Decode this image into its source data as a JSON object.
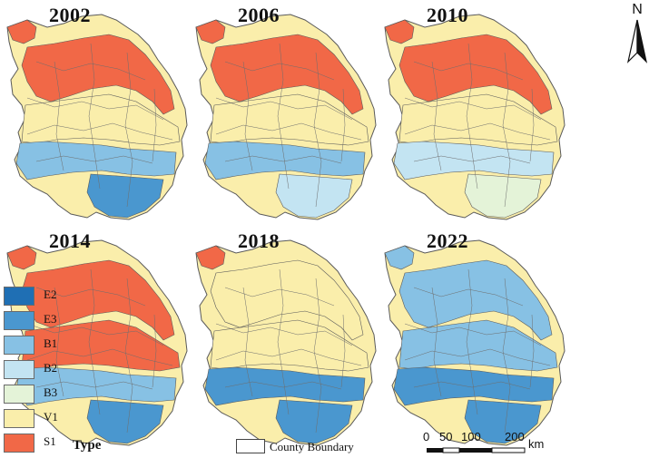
{
  "panels": [
    {
      "year": "2002",
      "north_belt": "S1",
      "central": "V1",
      "south": "B1",
      "southeast": "E3",
      "west_patch": "S1"
    },
    {
      "year": "2006",
      "north_belt": "S1",
      "central": "V1",
      "south": "B1",
      "southeast": "B2",
      "west_patch": "S1"
    },
    {
      "year": "2010",
      "north_belt": "S1",
      "central": "V1",
      "south": "B2",
      "southeast": "B3",
      "west_patch": "S1"
    },
    {
      "year": "2014",
      "north_belt": "S1",
      "central": "S1",
      "south": "B1",
      "southeast": "E3",
      "west_patch": "S1"
    },
    {
      "year": "2018",
      "north_belt": "V1",
      "central": "V1",
      "south": "E3",
      "southeast": "E3",
      "west_patch": "S1"
    },
    {
      "year": "2022",
      "north_belt": "B1",
      "central": "B1",
      "south": "E3",
      "southeast": "E3",
      "west_patch": "B1"
    }
  ],
  "legend": {
    "title": "Type",
    "items": [
      {
        "code": "E2",
        "color": "#1f6fb4"
      },
      {
        "code": "E3",
        "color": "#4a97cf"
      },
      {
        "code": "B1",
        "color": "#87c1e4"
      },
      {
        "code": "B2",
        "color": "#c3e4f2"
      },
      {
        "code": "B3",
        "color": "#e4f3d8"
      },
      {
        "code": "V1",
        "color": "#faeeab"
      },
      {
        "code": "S1",
        "color": "#f16847"
      }
    ],
    "boundary_label": "County Boundary"
  },
  "scale_bar": {
    "ticks": [
      "0",
      "50",
      "100",
      "200"
    ],
    "unit": "km"
  },
  "north": "N"
}
